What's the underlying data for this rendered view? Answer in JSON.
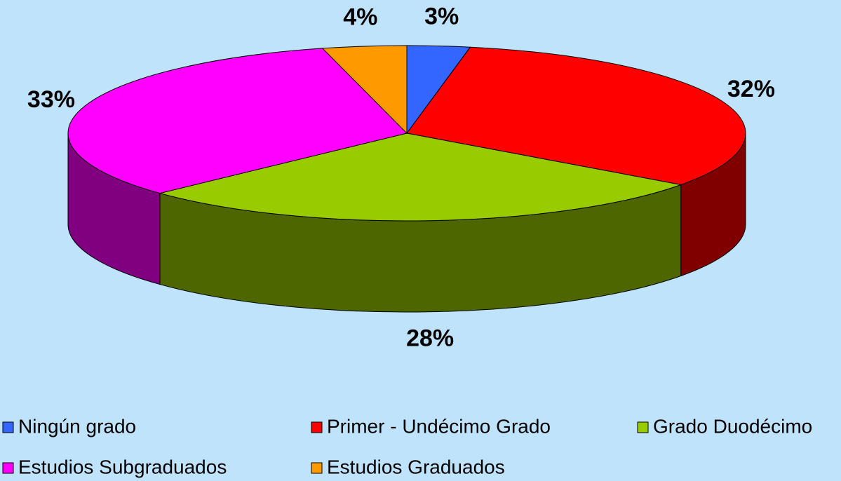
{
  "chart_data": {
    "type": "pie",
    "categories": [
      "Ningún grado",
      "Primer - Undécimo Grado",
      "Grado Duodécimo",
      "Estudios Subgraduados",
      "Estudios Graduados"
    ],
    "values": [
      3,
      32,
      28,
      33,
      4
    ],
    "value_labels": [
      "3%",
      "32%",
      "28%",
      "33%",
      "4%"
    ],
    "colors": [
      "#3366ff",
      "#ff0000",
      "#99cc00",
      "#ff00ff",
      "#ff9900"
    ],
    "legend": "bottom"
  }
}
